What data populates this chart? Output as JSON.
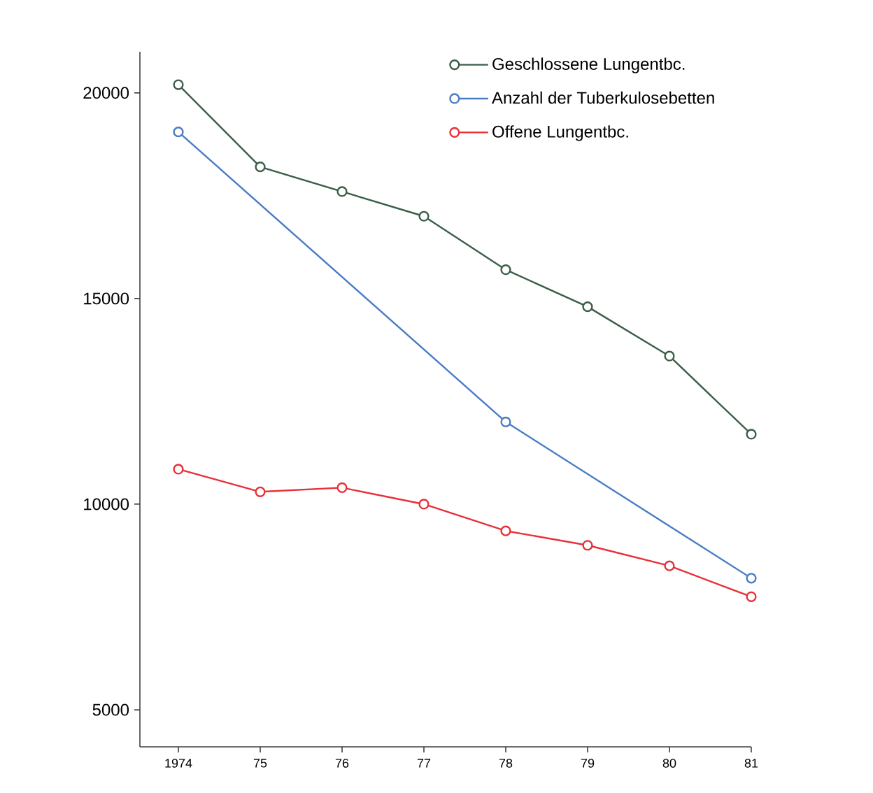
{
  "chart_data": {
    "type": "line",
    "x": [
      1974,
      1975,
      1976,
      1977,
      1978,
      1979,
      1980,
      1981
    ],
    "series": [
      {
        "name": "Geschlossene Lungentbc.",
        "color": "#3b5e48",
        "values": [
          20200,
          18200,
          17600,
          17000,
          15700,
          14800,
          13600,
          11700
        ]
      },
      {
        "name": "Anzahl der Tuberkulosebetten",
        "color": "#4a7cc4",
        "x": [
          1974,
          1978,
          1981
        ],
        "values": [
          19050,
          12000,
          8200
        ]
      },
      {
        "name": "Offene Lungentbc.",
        "color": "#e8303a",
        "values": [
          10850,
          10300,
          10400,
          10000,
          9350,
          9000,
          8500,
          7750
        ]
      }
    ],
    "xlim": [
      1973.53,
      1981
    ],
    "ylim": [
      4100,
      21000
    ],
    "xticks": [
      {
        "value": 1974,
        "label": "1974"
      },
      {
        "value": 1975,
        "label": "75"
      },
      {
        "value": 1976,
        "label": "76"
      },
      {
        "value": 1977,
        "label": "77"
      },
      {
        "value": 1978,
        "label": "78"
      },
      {
        "value": 1979,
        "label": "79"
      },
      {
        "value": 1980,
        "label": "80"
      },
      {
        "value": 1981,
        "label": "81"
      }
    ],
    "yticks": [
      5000,
      10000,
      15000,
      20000
    ],
    "legend": "top right",
    "marker": "circle",
    "line_style": "solid",
    "grid": false
  }
}
